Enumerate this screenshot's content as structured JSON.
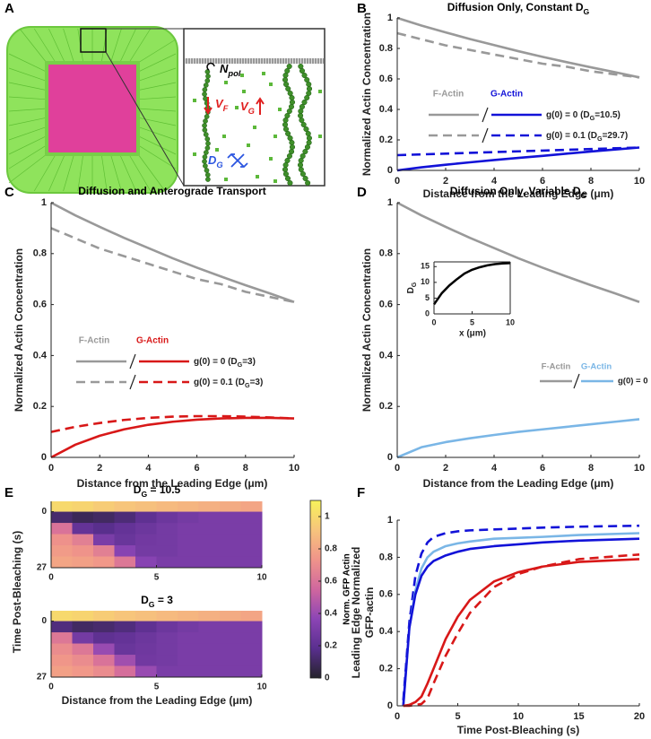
{
  "panel_labels": [
    "A",
    "B",
    "C",
    "D",
    "E",
    "F"
  ],
  "illustration": {
    "n_pol": [
      "N",
      "pol"
    ],
    "v_f": [
      "V",
      "F"
    ],
    "v_g": [
      "V",
      "G"
    ],
    "d_g": [
      "D",
      "G"
    ]
  },
  "colorbar": {
    "label": "Norm. GFP Actin",
    "lim": [
      0,
      1.1
    ],
    "ticks": [
      0,
      0.2,
      0.4,
      0.6,
      0.8,
      1
    ],
    "colormap": [
      "#25232b",
      "#5a2f8f",
      "#8c45b5",
      "#d0679e",
      "#f0948a",
      "#f7c47c",
      "#f7f25a"
    ]
  },
  "chart_data": [
    {
      "type": "line",
      "title": [
        "Diffusion Only, Constant D",
        "G"
      ],
      "xlabel": "Distance from the Leading Edge (μm)",
      "ylabel": "Normalized Actin Concentration",
      "xlim": [
        0,
        10
      ],
      "ylim": [
        0,
        1
      ],
      "xticks": [
        0,
        2,
        4,
        6,
        8,
        10
      ],
      "yticks": [
        0,
        0.2,
        0.4,
        0.6,
        0.8,
        1
      ],
      "x": [
        0,
        1,
        2,
        3,
        4,
        5,
        6,
        7,
        8,
        9,
        10
      ],
      "series": [
        {
          "color": "#999999",
          "dashed": false,
          "values": [
            1,
            0.95,
            0.905,
            0.862,
            0.822,
            0.782,
            0.745,
            0.71,
            0.676,
            0.644,
            0.61
          ]
        },
        {
          "color": "#999999",
          "dashed": true,
          "values": [
            0.9,
            0.86,
            0.82,
            0.79,
            0.76,
            0.73,
            0.7,
            0.68,
            0.65,
            0.63,
            0.61
          ]
        },
        {
          "color": "#1212d8",
          "dashed": false,
          "values": [
            0,
            0.02,
            0.037,
            0.053,
            0.068,
            0.082,
            0.095,
            0.11,
            0.124,
            0.137,
            0.15
          ]
        },
        {
          "color": "#1212d8",
          "dashed": true,
          "values": [
            0.1,
            0.105,
            0.11,
            0.115,
            0.12,
            0.125,
            0.13,
            0.135,
            0.14,
            0.145,
            0.15
          ]
        }
      ],
      "legend": {
        "headers": [
          "F-Actin",
          "G-Actin"
        ],
        "rows": [
          [
            "g(0) = 0 (D",
            "G",
            "=10.5)"
          ],
          [
            "g(0) = 0.1 (D",
            "G",
            "=29.7)"
          ]
        ]
      }
    },
    {
      "type": "line",
      "title": "Diffusion and Anterograde Transport",
      "xlabel": "Distance from the Leading Edge (μm)",
      "ylabel": "Normalized Actin Concentration",
      "xlim": [
        0,
        10
      ],
      "ylim": [
        0,
        1
      ],
      "xticks": [
        0,
        2,
        4,
        6,
        8,
        10
      ],
      "yticks": [
        0,
        0.2,
        0.4,
        0.6,
        0.8,
        1
      ],
      "x": [
        0,
        1,
        2,
        3,
        4,
        5,
        6,
        7,
        8,
        9,
        10
      ],
      "series": [
        {
          "color": "#999999",
          "dashed": false,
          "values": [
            1,
            0.95,
            0.905,
            0.862,
            0.822,
            0.782,
            0.745,
            0.71,
            0.676,
            0.644,
            0.61
          ]
        },
        {
          "color": "#999999",
          "dashed": true,
          "values": [
            0.9,
            0.86,
            0.82,
            0.79,
            0.76,
            0.73,
            0.7,
            0.68,
            0.65,
            0.63,
            0.61
          ]
        },
        {
          "color": "#d81818",
          "dashed": false,
          "values": [
            0,
            0.05,
            0.085,
            0.11,
            0.128,
            0.14,
            0.148,
            0.153,
            0.155,
            0.155,
            0.153
          ]
        },
        {
          "color": "#d81818",
          "dashed": true,
          "values": [
            0.1,
            0.12,
            0.135,
            0.147,
            0.155,
            0.16,
            0.162,
            0.162,
            0.16,
            0.157,
            0.153
          ]
        }
      ],
      "legend": {
        "headers": [
          "F-Actin",
          "G-Actin"
        ],
        "rows": [
          [
            "g(0) = 0 (D",
            "G",
            "=3)"
          ],
          [
            "g(0) = 0.1 (D",
            "G",
            "=3)"
          ]
        ]
      }
    },
    {
      "type": "line",
      "title": [
        "Diffusion Only, Variable D",
        "G"
      ],
      "xlabel": "Distance from the Leading Edge (μm)",
      "ylabel": "Normalized Actin Concentration",
      "xlim": [
        0,
        10
      ],
      "ylim": [
        0,
        1
      ],
      "xticks": [
        0,
        2,
        4,
        6,
        8,
        10
      ],
      "yticks": [
        0,
        0.2,
        0.4,
        0.6,
        0.8,
        1
      ],
      "x": [
        0,
        1,
        2,
        3,
        4,
        5,
        6,
        7,
        8,
        9,
        10
      ],
      "series": [
        {
          "color": "#999999",
          "dashed": false,
          "values": [
            1,
            0.95,
            0.905,
            0.862,
            0.822,
            0.782,
            0.745,
            0.71,
            0.676,
            0.644,
            0.61
          ]
        },
        {
          "color": "#7ab6e6",
          "dashed": false,
          "values": [
            0,
            0.04,
            0.06,
            0.075,
            0.088,
            0.1,
            0.11,
            0.12,
            0.13,
            0.14,
            0.15
          ]
        }
      ],
      "legend": {
        "headers": [
          "F-Actin",
          "G-Actin"
        ],
        "rows": [
          "g(0) = 0"
        ]
      }
    },
    {
      "type": "line",
      "xlabel": "x (μm)",
      "ylabel": [
        "D",
        "G"
      ],
      "xlim": [
        0,
        10
      ],
      "ylim": [
        0,
        16.5
      ],
      "xticks": [
        0,
        5,
        10
      ],
      "yticks": [
        0,
        5,
        10,
        15
      ],
      "x": [
        0,
        1,
        2,
        3,
        4,
        5,
        6,
        7,
        8,
        9,
        10
      ],
      "series": [
        {
          "color": "#000000",
          "dashed": false,
          "values": [
            3,
            6.5,
            9,
            11,
            12.8,
            14,
            14.8,
            15.4,
            15.8,
            16,
            16.1
          ]
        }
      ]
    },
    {
      "type": "heatmap",
      "title": [
        "D",
        "G",
        " = 10.5"
      ],
      "ylabel": "Time Post-Bleaching (s)",
      "xlim": [
        0,
        10
      ],
      "ylim": [
        -5,
        27
      ],
      "xticks": [
        0,
        5,
        10
      ],
      "yticks": [
        0,
        27
      ],
      "x_edges": [
        0,
        1,
        2,
        3,
        4,
        5,
        6,
        7,
        8,
        9,
        10
      ],
      "y_edges": [
        -5,
        0,
        5.4,
        10.8,
        16.2,
        21.6,
        27
      ],
      "z": [
        [
          1,
          0.98,
          0.95,
          0.92,
          0.9,
          0.88,
          0.86,
          0.84,
          0.82,
          0.8
        ],
        [
          0.12,
          0.08,
          0.1,
          0.14,
          0.2,
          0.25,
          0.28,
          0.3,
          0.3,
          0.3
        ],
        [
          0.6,
          0.22,
          0.18,
          0.22,
          0.25,
          0.28,
          0.3,
          0.3,
          0.3,
          0.3
        ],
        [
          0.72,
          0.65,
          0.3,
          0.24,
          0.27,
          0.28,
          0.3,
          0.3,
          0.3,
          0.3
        ],
        [
          0.76,
          0.73,
          0.65,
          0.35,
          0.28,
          0.28,
          0.3,
          0.3,
          0.3,
          0.3
        ],
        [
          0.8,
          0.78,
          0.75,
          0.62,
          0.35,
          0.3,
          0.3,
          0.3,
          0.3,
          0.3
        ]
      ]
    },
    {
      "type": "heatmap",
      "title": [
        "D",
        "G",
        " = 3"
      ],
      "xlabel": "Distance from the Leading Edge (μm)",
      "xlim": [
        0,
        10
      ],
      "ylim": [
        -5,
        27
      ],
      "xticks": [
        0,
        5,
        10
      ],
      "yticks": [
        0,
        27
      ],
      "x_edges": [
        0,
        1,
        2,
        3,
        4,
        5,
        6,
        7,
        8,
        9,
        10
      ],
      "y_edges": [
        -5,
        0,
        5.4,
        10.8,
        16.2,
        21.6,
        27
      ],
      "z": [
        [
          1,
          0.98,
          0.95,
          0.92,
          0.9,
          0.88,
          0.86,
          0.84,
          0.82,
          0.8
        ],
        [
          0.15,
          0.1,
          0.12,
          0.15,
          0.2,
          0.25,
          0.28,
          0.3,
          0.3,
          0.3
        ],
        [
          0.62,
          0.28,
          0.2,
          0.22,
          0.25,
          0.28,
          0.3,
          0.3,
          0.3,
          0.3
        ],
        [
          0.7,
          0.62,
          0.4,
          0.24,
          0.26,
          0.28,
          0.3,
          0.3,
          0.3,
          0.3
        ],
        [
          0.74,
          0.7,
          0.6,
          0.42,
          0.27,
          0.28,
          0.3,
          0.3,
          0.3,
          0.3
        ],
        [
          0.78,
          0.75,
          0.7,
          0.58,
          0.4,
          0.3,
          0.3,
          0.3,
          0.3,
          0.3
        ]
      ]
    },
    {
      "type": "line",
      "xlabel": "Time Post-Bleaching (s)",
      "ylabel_lines": [
        "Leading Edge Normalized",
        "GFP-actin"
      ],
      "xlim": [
        0,
        20
      ],
      "ylim": [
        0,
        1
      ],
      "xticks": [
        0,
        5,
        10,
        15,
        20
      ],
      "yticks": [
        0,
        0.2,
        0.4,
        0.6,
        0.8,
        1
      ],
      "x": [
        0.5,
        1,
        1.5,
        2,
        2.5,
        3,
        4,
        5,
        6,
        8,
        10,
        12,
        15,
        20
      ],
      "series": [
        {
          "color": "#1212d8",
          "dashed": true,
          "values": [
            0.03,
            0.45,
            0.7,
            0.82,
            0.88,
            0.91,
            0.93,
            0.94,
            0.945,
            0.95,
            0.955,
            0.96,
            0.965,
            0.97
          ]
        },
        {
          "color": "#7ab6e6",
          "dashed": false,
          "values": [
            0,
            0.42,
            0.62,
            0.74,
            0.8,
            0.83,
            0.86,
            0.875,
            0.885,
            0.9,
            0.905,
            0.91,
            0.92,
            0.93
          ]
        },
        {
          "color": "#1212d8",
          "dashed": false,
          "values": [
            0,
            0.42,
            0.6,
            0.7,
            0.75,
            0.78,
            0.81,
            0.83,
            0.845,
            0.86,
            0.87,
            0.88,
            0.89,
            0.9
          ]
        },
        {
          "color": "#d81818",
          "dashed": false,
          "values": [
            0,
            0.005,
            0.02,
            0.05,
            0.12,
            0.2,
            0.36,
            0.48,
            0.57,
            0.67,
            0.72,
            0.75,
            0.775,
            0.79
          ]
        },
        {
          "color": "#d81818",
          "dashed": true,
          "values": [
            0,
            0,
            0.005,
            0.01,
            0.04,
            0.12,
            0.27,
            0.39,
            0.5,
            0.64,
            0.71,
            0.75,
            0.79,
            0.815
          ]
        }
      ]
    }
  ]
}
